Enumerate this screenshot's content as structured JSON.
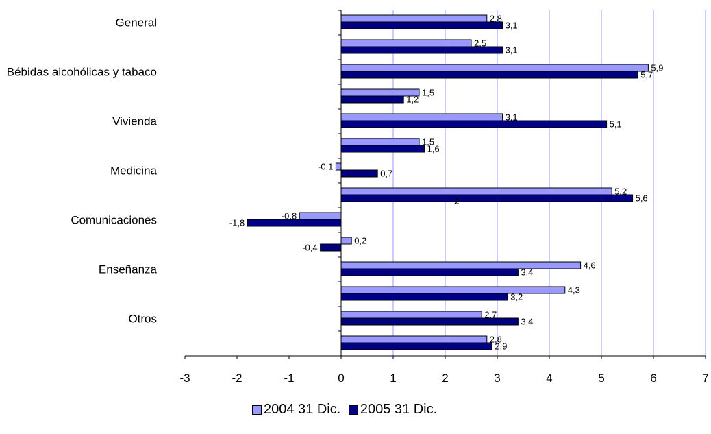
{
  "chart_data": {
    "type": "bar",
    "orientation": "horizontal",
    "categories": [
      "General",
      "",
      "Bébidas alcohólicas y tabaco",
      "",
      "Vivienda",
      "",
      "Medicina",
      "",
      "Comunicaciones",
      "",
      "Enseñanza",
      "",
      "Otros",
      ""
    ],
    "series": [
      {
        "name": "2004 31 Dic.",
        "color": "#9999ff",
        "values": [
          2.8,
          2.5,
          5.9,
          1.5,
          3.1,
          1.5,
          -0.1,
          5.2,
          -0.8,
          0.2,
          4.6,
          4.3,
          2.7,
          2.8
        ],
        "labels": [
          "2,8",
          "2,5",
          "5,9",
          "1,5",
          "3,1",
          "1,5",
          "-0,1",
          "5,2",
          "-0,8",
          "0,2",
          "4,6",
          "4,3",
          "2,7",
          "2,8"
        ]
      },
      {
        "name": "2005 31 Dic.",
        "color": "#000080",
        "values": [
          3.1,
          3.1,
          5.7,
          1.2,
          5.1,
          1.6,
          0.7,
          5.6,
          -1.8,
          -0.4,
          3.4,
          3.2,
          3.4,
          2.9
        ],
        "labels": [
          "3,1",
          "3,1",
          "5,7",
          "1,2",
          "5,1",
          "1,6",
          "0,7",
          "5,6",
          "-1,8",
          "-0,4",
          "3,4",
          "3,2",
          "3,4",
          "2,9"
        ]
      }
    ],
    "xlim": [
      -3,
      7
    ],
    "xticks": [
      -3,
      -2,
      -1,
      0,
      1,
      2,
      3,
      4,
      5,
      6,
      7
    ],
    "grid": "vertical",
    "legend": "bottom",
    "stray_annotation": {
      "text": "2",
      "category_index": 7,
      "x": 2.2
    }
  }
}
